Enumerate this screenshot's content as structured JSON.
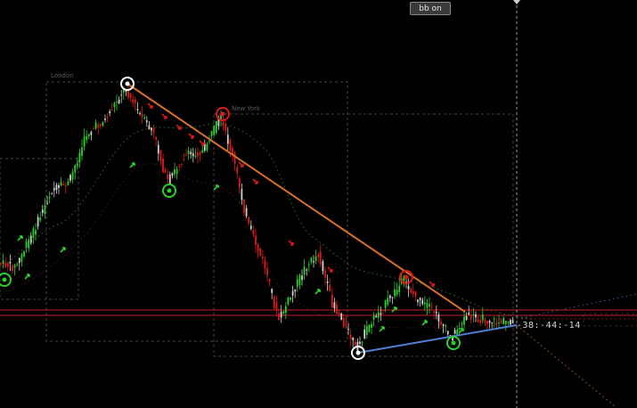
{
  "toolbar": {
    "bb_button_label": "bb on"
  },
  "sessions": {
    "london_label": "London",
    "newyork_label": "New York"
  },
  "countdown": {
    "text": "-38:-44:-14"
  },
  "colors": {
    "bull_candle": "#2bd12b",
    "bear_candle": "#e01818",
    "neutral_candle": "#cfcfcf",
    "trendline_down": "#d8702a",
    "trendline_up": "#4f7fd0",
    "horizontal_level": "#c42020",
    "bb_band": "#1f5a1f",
    "crosshair": "#9a9a9a"
  },
  "markers": [
    {
      "type": "swing-high",
      "style": "white"
    },
    {
      "type": "swing-high",
      "style": "red"
    },
    {
      "type": "swing-high",
      "style": "red"
    },
    {
      "type": "swing-low",
      "style": "green"
    },
    {
      "type": "swing-low",
      "style": "green"
    },
    {
      "type": "swing-low",
      "style": "white"
    },
    {
      "type": "swing-low",
      "style": "green"
    }
  ]
}
